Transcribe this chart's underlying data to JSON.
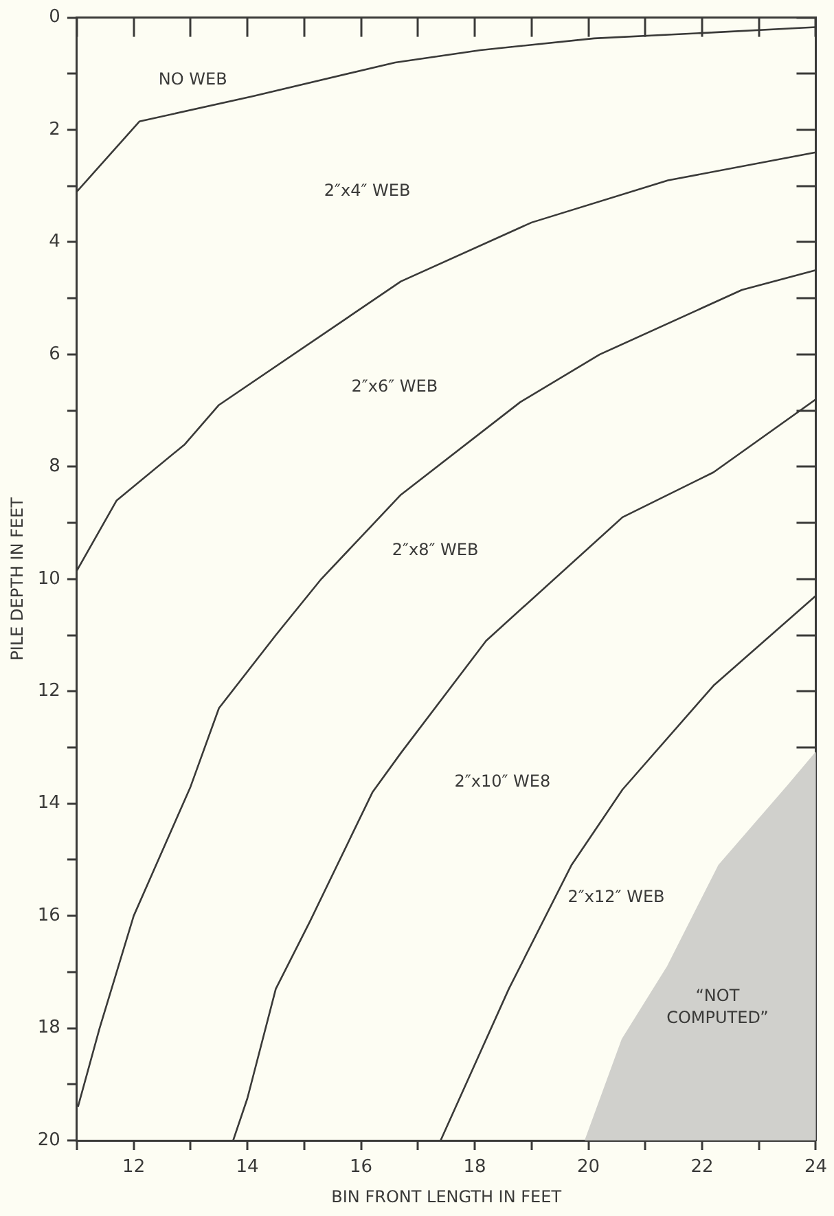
{
  "chart_data": {
    "type": "line",
    "xlabel": "BIN FRONT LENGTH IN FEET",
    "ylabel": "PILE DEPTH IN FEET",
    "xlim": [
      11,
      24
    ],
    "xticks": [
      {
        "value": 11,
        "label": null
      },
      12,
      {
        "value": 13,
        "label": null
      },
      14,
      {
        "value": 15,
        "label": null
      },
      16,
      {
        "value": 17,
        "label": null
      },
      18,
      {
        "value": 19,
        "label": null
      },
      20,
      {
        "value": 21,
        "label": null
      },
      22,
      {
        "value": 23,
        "label": null
      },
      24
    ],
    "ylim": [
      20,
      0
    ],
    "yticks": [
      0,
      {
        "value": 1,
        "label": null
      },
      2,
      {
        "value": 3,
        "label": null
      },
      4,
      {
        "value": 5,
        "label": null
      },
      6,
      {
        "value": 7,
        "label": null
      },
      8,
      {
        "value": 9,
        "label": null
      },
      10,
      {
        "value": 11,
        "label": null
      },
      12,
      {
        "value": 13,
        "label": null
      },
      14,
      {
        "value": 15,
        "label": null
      },
      16,
      {
        "value": 17,
        "label": null
      },
      18,
      {
        "value": 19,
        "label": null
      },
      20
    ],
    "grid": false,
    "legend": false,
    "marker": "none",
    "line_style": "solid",
    "series": [
      {
        "color": "#3a3a38",
        "x": [
          11,
          12.1,
          14.1,
          16.6,
          18.1,
          20.1,
          22.1,
          24
        ],
        "values": [
          3.1,
          1.85,
          1.4,
          0.8,
          0.58,
          0.37,
          0.27,
          0.17
        ]
      },
      {
        "color": "#3a3a38",
        "x": [
          11,
          11.7,
          12.9,
          13.5,
          16.7,
          19,
          21.4,
          24
        ],
        "values": [
          9.85,
          8.6,
          7.6,
          6.9,
          4.7,
          3.65,
          2.9,
          2.4
        ]
      },
      {
        "color": "#3a3a38",
        "x": [
          11.02,
          11.4,
          12,
          13,
          13.5,
          14.5,
          15.3,
          16.7,
          18.8,
          20.2,
          22.7,
          24
        ],
        "values": [
          19.4,
          18,
          16,
          13.7,
          12.3,
          11,
          10,
          8.5,
          6.85,
          6,
          4.85,
          4.5
        ]
      },
      {
        "color": "#3a3a38",
        "x": [
          13.75,
          14,
          14.5,
          15.1,
          16.2,
          16.7,
          18.2,
          20.6,
          22.2,
          24
        ],
        "values": [
          20,
          19.25,
          17.3,
          16.1,
          13.8,
          13.1,
          11.1,
          8.9,
          8.1,
          6.8
        ]
      },
      {
        "color": "#3a3a38",
        "x": [
          17.4,
          18.6,
          19.7,
          20.6,
          22.2,
          24
        ],
        "values": [
          20,
          17.3,
          15.1,
          13.75,
          11.9,
          10.3
        ]
      },
      {
        "type": "area",
        "color": "#d0d0cc",
        "x": [
          19.95,
          20.6,
          21.4,
          22.3,
          23.5,
          24,
          24
        ],
        "values": [
          20,
          18.2,
          16.9,
          15.1,
          13.7,
          13.1,
          20
        ]
      }
    ],
    "annotations": [
      "NO WEB",
      "2″x4″ WEB",
      "2″x6″ WEB",
      "2″x8″ WEB",
      "2″x10″ WE8",
      "2″x12″ WEB",
      "“NOT\nCOMPUTED”"
    ]
  }
}
